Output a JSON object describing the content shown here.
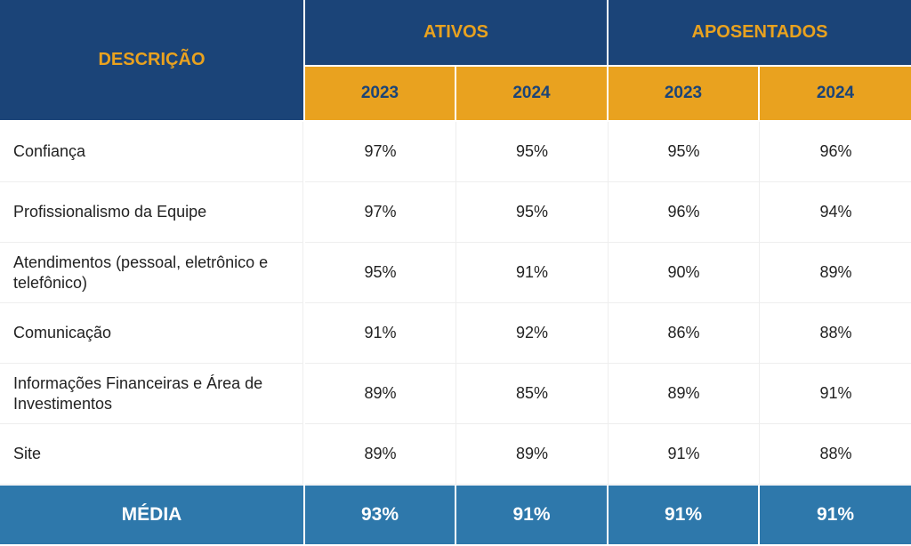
{
  "header": {
    "description": "DESCRIÇÃO",
    "groups": [
      "ATIVOS",
      "APOSENTADOS"
    ],
    "years": [
      "2023",
      "2024",
      "2023",
      "2024"
    ]
  },
  "rows": [
    {
      "label": "Confiança",
      "values": [
        "97%",
        "95%",
        "95%",
        "96%"
      ]
    },
    {
      "label": "Profissionalismo da Equipe",
      "values": [
        "97%",
        "95%",
        "96%",
        "94%"
      ]
    },
    {
      "label": "Atendimentos (pessoal, eletrônico e telefônico)",
      "values": [
        "95%",
        "91%",
        "90%",
        "89%"
      ]
    },
    {
      "label": "Comunicação",
      "values": [
        "91%",
        "92%",
        "86%",
        "88%"
      ]
    },
    {
      "label": "Informações Financeiras e Área de Investimentos",
      "values": [
        "89%",
        "85%",
        "89%",
        "91%"
      ]
    },
    {
      "label": "Site",
      "values": [
        "89%",
        "89%",
        "91%",
        "88%"
      ]
    }
  ],
  "footer": {
    "label": "MÉDIA",
    "values": [
      "93%",
      "91%",
      "91%",
      "91%"
    ]
  },
  "colors": {
    "dark_blue": "#1b4478",
    "gold": "#e9a21f",
    "footer_blue": "#2e78ab"
  }
}
